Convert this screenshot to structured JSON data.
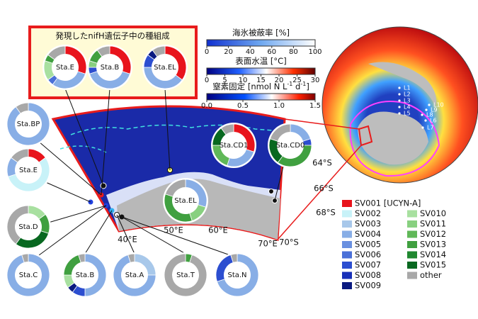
{
  "title": "発現したnifH遺伝子中の種組成",
  "colorbars": [
    {
      "label": [
        "海氷被蔽率 [%]"
      ],
      "ticks": [
        0,
        20,
        40,
        60,
        80,
        100
      ]
    },
    {
      "label": [
        "表面水温 [°C]"
      ],
      "ticks": [
        0,
        5,
        10,
        15,
        20,
        25,
        30
      ]
    },
    {
      "label": [
        "窒素固定 [nmol N L",
        "-1",
        " d",
        "-1",
        "]"
      ],
      "ticks": [
        {
          "value": 0,
          "label": "0.0"
        },
        {
          "value": 0.5,
          "label": "0.5"
        },
        {
          "value": 1,
          "label": "1.0"
        },
        {
          "value": 1.5,
          "label": "1.5"
        }
      ]
    }
  ],
  "legend": [
    {
      "name": "SV001 [UCYN-A]",
      "color": "#e8141c"
    },
    {
      "name": "SV002",
      "color": "#c8f2f8"
    },
    {
      "name": "SV003",
      "color": "#a8c8ea"
    },
    {
      "name": "SV004",
      "color": "#88aee6"
    },
    {
      "name": "SV005",
      "color": "#6a90e0"
    },
    {
      "name": "SV006",
      "color": "#4a70d8"
    },
    {
      "name": "SV007",
      "color": "#2c4ed0"
    },
    {
      "name": "SV008",
      "color": "#1830b8"
    },
    {
      "name": "SV009",
      "color": "#0a1a80"
    },
    {
      "name": "SV010",
      "color": "#a8e0a0"
    },
    {
      "name": "SV011",
      "color": "#88d080"
    },
    {
      "name": "SV012",
      "color": "#60b858"
    },
    {
      "name": "SV013",
      "color": "#40a040"
    },
    {
      "name": "SV014",
      "color": "#208830"
    },
    {
      "name": "SV015",
      "color": "#086820"
    },
    {
      "name": "other",
      "color": "#a8a8a8"
    }
  ],
  "stations": [
    {
      "name": "Sta.E",
      "values": [
        30,
        0,
        0,
        30,
        0,
        5,
        0,
        0,
        0,
        15,
        0,
        0,
        5,
        0,
        0,
        15
      ]
    },
    {
      "name": "Sta.B",
      "values": [
        30,
        0,
        0,
        40,
        0,
        0,
        5,
        0,
        0,
        0,
        5,
        0,
        10,
        0,
        0,
        10
      ]
    },
    {
      "name": "Sta.EL",
      "values": [
        35,
        0,
        0,
        40,
        0,
        0,
        10,
        0,
        5,
        0,
        0,
        0,
        0,
        0,
        0,
        10
      ]
    },
    {
      "name": "Sta.BP",
      "values": [
        0,
        0,
        0,
        90,
        0,
        0,
        0,
        0,
        0,
        0,
        0,
        0,
        0,
        0,
        0,
        10
      ]
    },
    {
      "name": "Sta.E",
      "values": [
        15,
        55,
        0,
        15,
        0,
        0,
        0,
        0,
        0,
        0,
        0,
        0,
        0,
        0,
        0,
        15
      ]
    },
    {
      "name": "Sta.D",
      "values": [
        0,
        0,
        0,
        0,
        0,
        0,
        0,
        0,
        0,
        15,
        0,
        0,
        15,
        0,
        30,
        40
      ]
    },
    {
      "name": "Sta.C",
      "values": [
        0,
        0,
        0,
        95,
        0,
        0,
        0,
        0,
        0,
        0,
        0,
        0,
        0,
        0,
        0,
        5
      ]
    },
    {
      "name": "Sta.B",
      "values": [
        0,
        0,
        0,
        50,
        0,
        0,
        10,
        0,
        5,
        10,
        0,
        0,
        20,
        0,
        0,
        5
      ]
    },
    {
      "name": "Sta.A",
      "values": [
        0,
        0,
        25,
        70,
        0,
        0,
        0,
        0,
        0,
        0,
        0,
        0,
        0,
        0,
        0,
        5
      ]
    },
    {
      "name": "Sta.T",
      "values": [
        0,
        0,
        0,
        0,
        0,
        0,
        0,
        0,
        0,
        0,
        0,
        0,
        5,
        0,
        0,
        95
      ]
    },
    {
      "name": "Sta.N",
      "values": [
        0,
        0,
        0,
        70,
        0,
        0,
        25,
        0,
        0,
        0,
        0,
        0,
        0,
        0,
        0,
        5
      ]
    },
    {
      "name": "Sta.EL",
      "values": [
        0,
        0,
        0,
        30,
        0,
        0,
        0,
        0,
        0,
        0,
        15,
        0,
        35,
        0,
        0,
        20
      ]
    },
    {
      "name": "Sta.CD1",
      "values": [
        30,
        0,
        0,
        25,
        0,
        0,
        0,
        0,
        0,
        0,
        0,
        20,
        0,
        0,
        15,
        10
      ]
    },
    {
      "name": "Sta.CD0",
      "values": [
        0,
        0,
        0,
        20,
        0,
        0,
        5,
        0,
        0,
        0,
        0,
        0,
        35,
        0,
        20,
        20
      ]
    }
  ],
  "map_labels": [
    "40°E",
    "50°E",
    "60°E",
    "70°E",
    "64°S",
    "66°S",
    "68°S",
    "70°S"
  ],
  "globe_labels": [
    "L1",
    "L2",
    "L3",
    "L4",
    "L5",
    "L6",
    "L7",
    "L8",
    "L9",
    "L10"
  ]
}
